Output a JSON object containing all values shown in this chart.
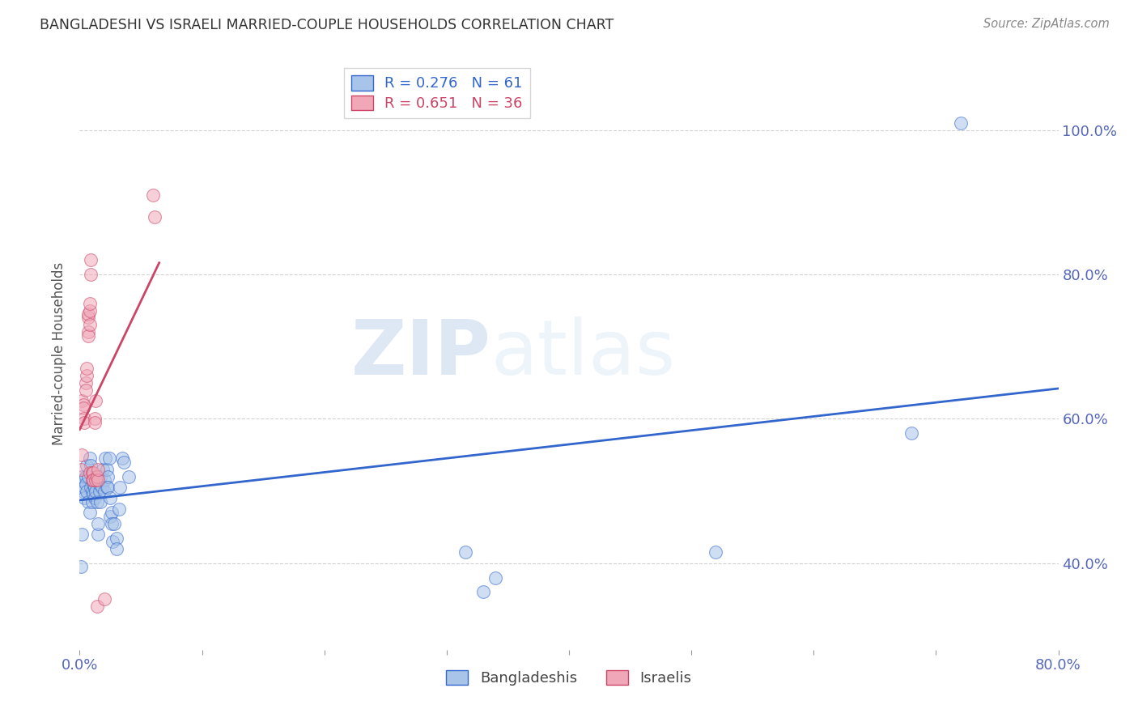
{
  "title": "BANGLADESHI VS ISRAELI MARRIED-COUPLE HOUSEHOLDS CORRELATION CHART",
  "source": "Source: ZipAtlas.com",
  "ylabel": "Married-couple Households",
  "legend_blue": {
    "R": "0.276",
    "N": "61",
    "label": "Bangladeshis",
    "color": "#a8c4e8"
  },
  "legend_pink": {
    "R": "0.651",
    "N": "36",
    "label": "Israelis",
    "color": "#f0a8b8"
  },
  "blue_scatter_color": "#a8c4e8",
  "blue_line_color": "#3366cc",
  "pink_scatter_color": "#f0a8b8",
  "pink_line_color": "#cc4466",
  "watermark_zip": "ZIP",
  "watermark_atlas": "atlas",
  "xlim": [
    0.0,
    0.8
  ],
  "ylim": [
    0.28,
    1.1
  ],
  "yticks": [
    0.4,
    0.6,
    0.8,
    1.0
  ],
  "xtick_show": [
    0.0,
    0.8
  ],
  "blue_line_xlim": [
    0.0,
    0.8
  ],
  "pink_line_xlim": [
    0.0,
    0.065
  ],
  "blue_points": [
    [
      0.001,
      0.395
    ],
    [
      0.002,
      0.44
    ],
    [
      0.002,
      0.52
    ],
    [
      0.003,
      0.5
    ],
    [
      0.003,
      0.515
    ],
    [
      0.004,
      0.505
    ],
    [
      0.004,
      0.49
    ],
    [
      0.005,
      0.52
    ],
    [
      0.005,
      0.51
    ],
    [
      0.006,
      0.5
    ],
    [
      0.006,
      0.535
    ],
    [
      0.007,
      0.485
    ],
    [
      0.007,
      0.52
    ],
    [
      0.008,
      0.545
    ],
    [
      0.008,
      0.47
    ],
    [
      0.009,
      0.535
    ],
    [
      0.009,
      0.505
    ],
    [
      0.01,
      0.5
    ],
    [
      0.01,
      0.485
    ],
    [
      0.011,
      0.51
    ],
    [
      0.011,
      0.495
    ],
    [
      0.012,
      0.505
    ],
    [
      0.012,
      0.49
    ],
    [
      0.013,
      0.52
    ],
    [
      0.013,
      0.5
    ],
    [
      0.014,
      0.485
    ],
    [
      0.015,
      0.44
    ],
    [
      0.015,
      0.455
    ],
    [
      0.016,
      0.5
    ],
    [
      0.016,
      0.51
    ],
    [
      0.017,
      0.485
    ],
    [
      0.017,
      0.52
    ],
    [
      0.018,
      0.505
    ],
    [
      0.019,
      0.53
    ],
    [
      0.02,
      0.5
    ],
    [
      0.02,
      0.515
    ],
    [
      0.021,
      0.545
    ],
    [
      0.022,
      0.505
    ],
    [
      0.022,
      0.53
    ],
    [
      0.023,
      0.52
    ],
    [
      0.023,
      0.505
    ],
    [
      0.024,
      0.545
    ],
    [
      0.025,
      0.49
    ],
    [
      0.025,
      0.465
    ],
    [
      0.026,
      0.47
    ],
    [
      0.026,
      0.455
    ],
    [
      0.027,
      0.43
    ],
    [
      0.028,
      0.455
    ],
    [
      0.03,
      0.435
    ],
    [
      0.03,
      0.42
    ],
    [
      0.032,
      0.475
    ],
    [
      0.033,
      0.505
    ],
    [
      0.035,
      0.545
    ],
    [
      0.036,
      0.54
    ],
    [
      0.04,
      0.52
    ],
    [
      0.315,
      0.415
    ],
    [
      0.33,
      0.36
    ],
    [
      0.34,
      0.38
    ],
    [
      0.52,
      0.415
    ],
    [
      0.68,
      0.58
    ],
    [
      0.72,
      1.01
    ]
  ],
  "pink_points": [
    [
      0.001,
      0.53
    ],
    [
      0.002,
      0.55
    ],
    [
      0.002,
      0.625
    ],
    [
      0.003,
      0.62
    ],
    [
      0.003,
      0.615
    ],
    [
      0.004,
      0.6
    ],
    [
      0.004,
      0.595
    ],
    [
      0.005,
      0.65
    ],
    [
      0.005,
      0.64
    ],
    [
      0.006,
      0.66
    ],
    [
      0.006,
      0.67
    ],
    [
      0.007,
      0.72
    ],
    [
      0.007,
      0.715
    ],
    [
      0.007,
      0.74
    ],
    [
      0.007,
      0.745
    ],
    [
      0.008,
      0.73
    ],
    [
      0.008,
      0.525
    ],
    [
      0.008,
      0.75
    ],
    [
      0.008,
      0.76
    ],
    [
      0.009,
      0.8
    ],
    [
      0.009,
      0.82
    ],
    [
      0.01,
      0.525
    ],
    [
      0.01,
      0.515
    ],
    [
      0.011,
      0.525
    ],
    [
      0.011,
      0.515
    ],
    [
      0.012,
      0.6
    ],
    [
      0.012,
      0.595
    ],
    [
      0.013,
      0.625
    ],
    [
      0.013,
      0.515
    ],
    [
      0.014,
      0.52
    ],
    [
      0.014,
      0.34
    ],
    [
      0.015,
      0.515
    ],
    [
      0.015,
      0.53
    ],
    [
      0.02,
      0.35
    ],
    [
      0.06,
      0.91
    ],
    [
      0.061,
      0.88
    ]
  ],
  "background_color": "#ffffff",
  "grid_color": "#cccccc"
}
